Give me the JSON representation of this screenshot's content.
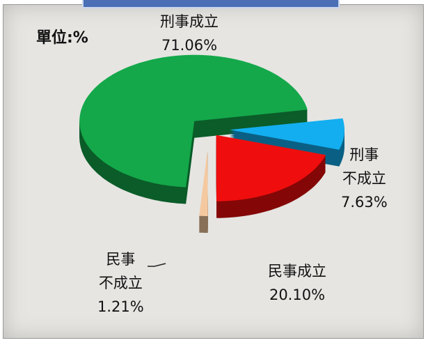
{
  "chart_data": {
    "type": "pie",
    "unit": "單位:%",
    "categories": [
      "刑事成立",
      "刑事\n不成立",
      "民事成立",
      "民事\n不成立"
    ],
    "values": [
      71.06,
      7.63,
      20.1,
      1.21
    ],
    "value_labels": [
      "71.06%",
      "7.63%",
      "20.10%",
      "1.21%"
    ],
    "colors": [
      "#14a84a",
      "#13aef0",
      "#f00d0d",
      "#f5c9a0"
    ]
  }
}
